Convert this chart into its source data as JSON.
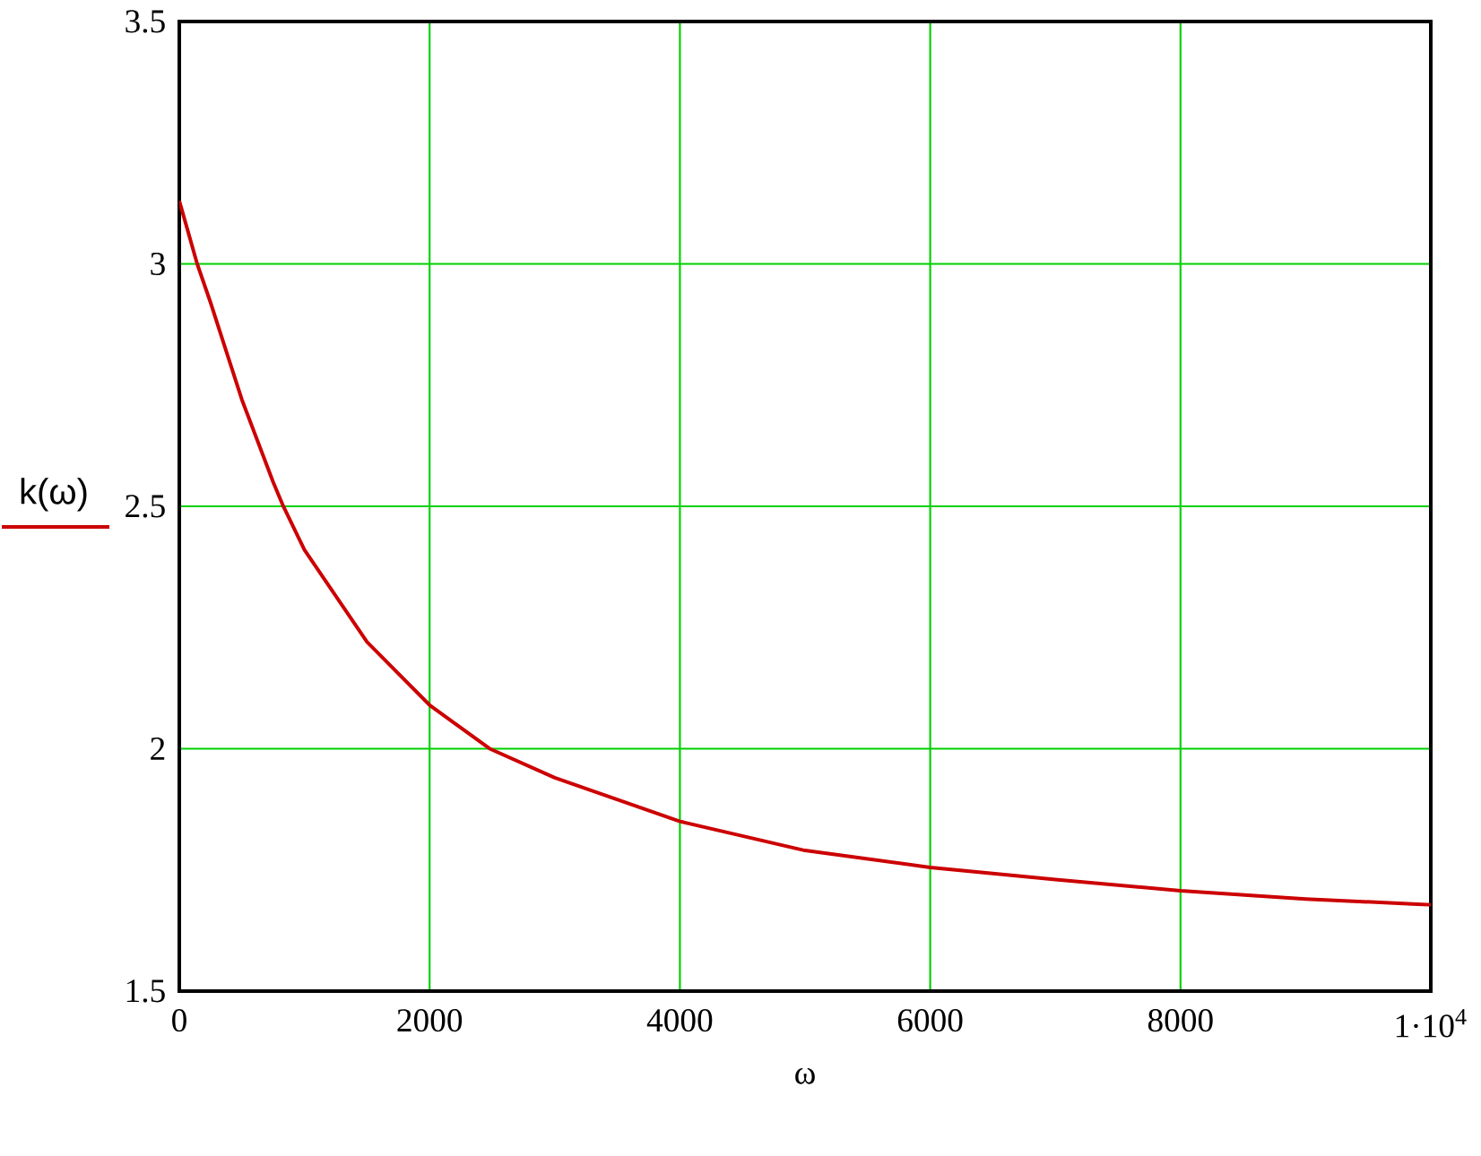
{
  "chart_data": {
    "type": "line",
    "xlabel": "ω",
    "x": [
      0,
      143,
      250,
      500,
      750,
      831,
      1000,
      1500,
      2000,
      2480,
      3000,
      4000,
      5000,
      6000,
      7000,
      8000,
      9000,
      10000
    ],
    "series": [
      {
        "name": "k(ω)",
        "color": "#cc0000",
        "values": [
          3.13,
          3.0,
          2.92,
          2.72,
          2.55,
          2.5,
          2.41,
          2.22,
          2.09,
          2.0,
          1.94,
          1.85,
          1.79,
          1.755,
          1.73,
          1.707,
          1.69,
          1.678
        ]
      }
    ],
    "xlim": [
      0,
      10000
    ],
    "ylim": [
      1.5,
      3.5
    ],
    "xticks": [
      0,
      2000,
      4000,
      6000,
      8000,
      {
        "value": 10000,
        "label": "1·10$^{4}$"
      }
    ],
    "yticks": [
      1.5,
      2,
      2.5,
      3,
      3.5
    ],
    "grid": true,
    "legend": "left",
    "marker": "none",
    "line_style": "solid"
  }
}
